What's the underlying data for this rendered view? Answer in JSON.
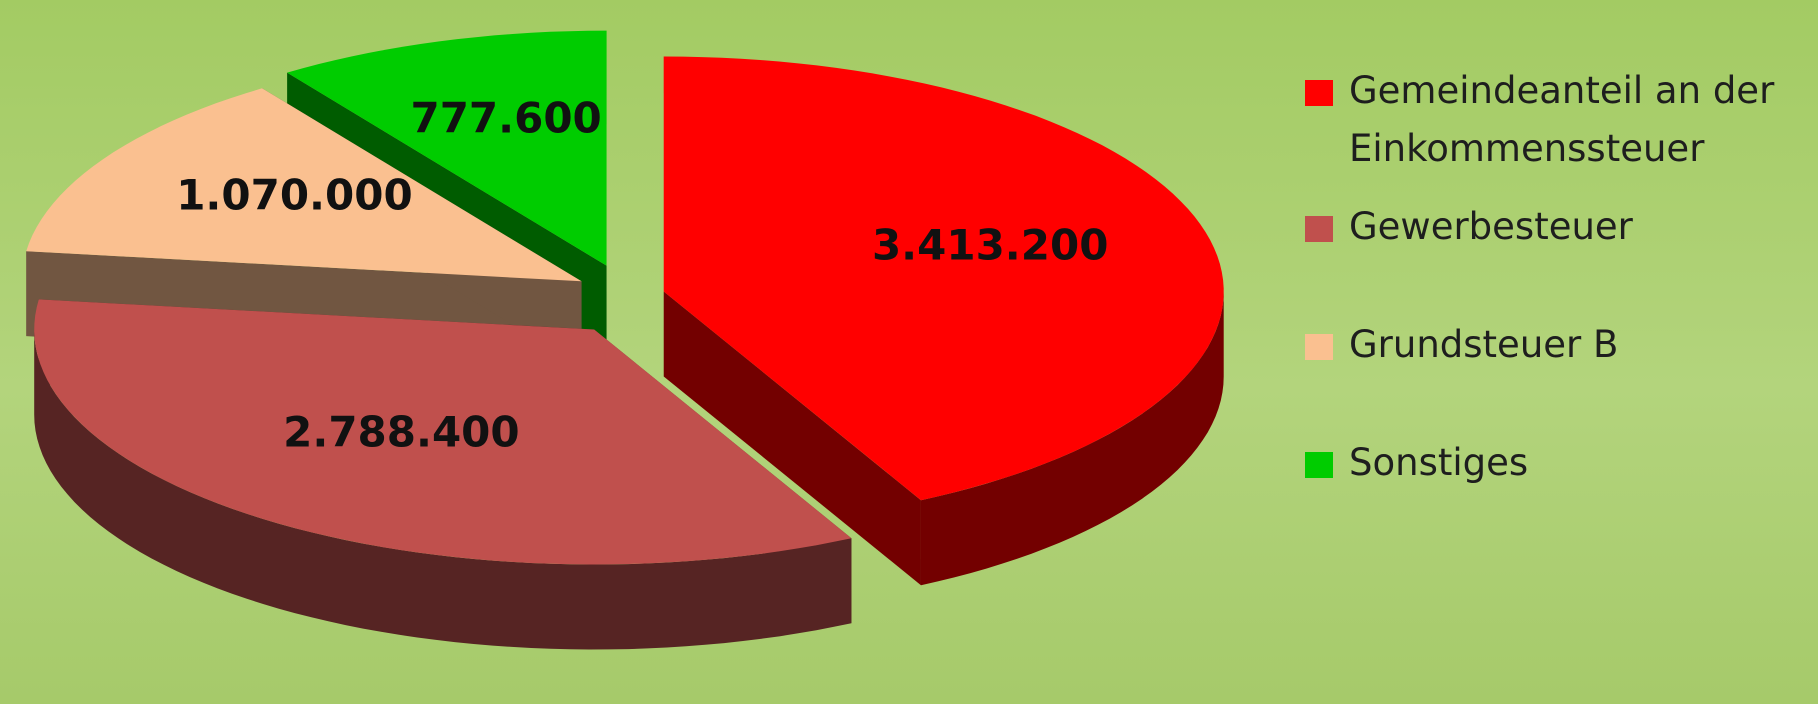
{
  "chart_data": {
    "type": "pie3d",
    "categories": [
      "Gemeindeanteil an der Einkommenssteuer",
      "Gewerbesteuer",
      "Grundsteuer B",
      "Sonstiges"
    ],
    "values": [
      3413200,
      2788400,
      1070000,
      777600
    ],
    "value_labels": [
      "3.413.200",
      "2.788.400",
      "1.070.000",
      "777.600"
    ],
    "colors": [
      "#ff0000",
      "#c0504d",
      "#fac090",
      "#00cc00"
    ],
    "legend": "right"
  }
}
